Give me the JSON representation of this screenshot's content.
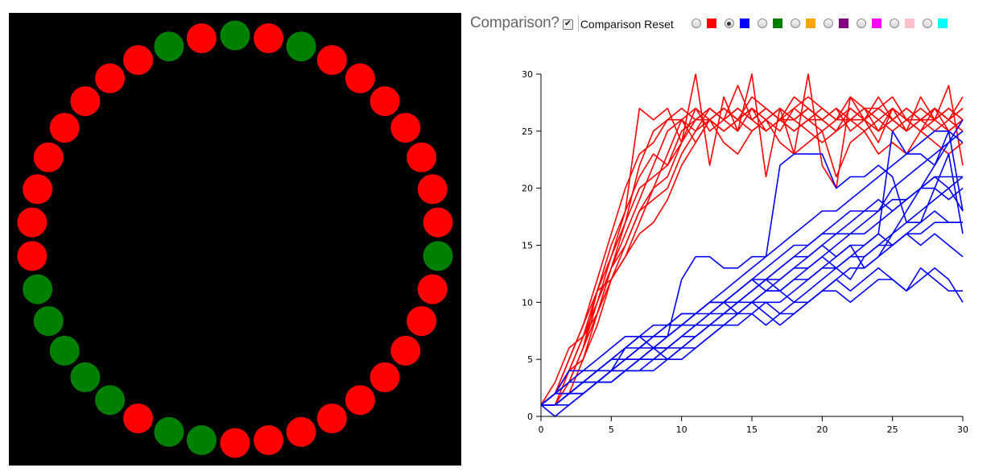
{
  "ring": {
    "background": "#000000",
    "agents": [
      "green",
      "red",
      "green",
      "red",
      "red",
      "red",
      "red",
      "red",
      "red",
      "red",
      "green",
      "red",
      "red",
      "red",
      "red",
      "red",
      "red",
      "red",
      "red",
      "red",
      "green",
      "green",
      "red",
      "green",
      "green",
      "green",
      "green",
      "green",
      "red",
      "red",
      "red",
      "red",
      "red",
      "red",
      "red",
      "red",
      "green",
      "red"
    ],
    "colors": {
      "red": "#ff0000",
      "green": "#008000"
    }
  },
  "controls": {
    "comparison_label": "Comparison?",
    "comparison_checked": true,
    "check_glyph": "✔",
    "reset_label": "Comparison Reset",
    "options": [
      {
        "name": "red",
        "color": "#ff0000",
        "selected": false
      },
      {
        "name": "blue",
        "color": "#0000ff",
        "selected": true
      },
      {
        "name": "green",
        "color": "#008000",
        "selected": false
      },
      {
        "name": "orange",
        "color": "#ffa500",
        "selected": false
      },
      {
        "name": "purple",
        "color": "#800080",
        "selected": false
      },
      {
        "name": "magenta",
        "color": "#ff00ff",
        "selected": false
      },
      {
        "name": "pink",
        "color": "#ffc0cb",
        "selected": false
      },
      {
        "name": "cyan",
        "color": "#00ffff",
        "selected": false
      }
    ]
  },
  "chart_data": {
    "type": "line",
    "title": "",
    "xlabel": "",
    "ylabel": "",
    "xlim": [
      0,
      30
    ],
    "ylim": [
      0,
      30
    ],
    "xticks": [
      0,
      5,
      10,
      15,
      20,
      25,
      30
    ],
    "yticks": [
      0,
      5,
      10,
      15,
      20,
      25,
      30
    ],
    "grid": false,
    "x": [
      0,
      1,
      2,
      3,
      4,
      5,
      6,
      7,
      8,
      9,
      10,
      11,
      12,
      13,
      14,
      15,
      16,
      17,
      18,
      19,
      20,
      21,
      22,
      23,
      24,
      25,
      26,
      27,
      28,
      29,
      30
    ],
    "series": [
      {
        "color": "#ff0000",
        "values": [
          1,
          3,
          6,
          7,
          11,
          15,
          18,
          21,
          23,
          22,
          25,
          26,
          27,
          26,
          27,
          26,
          27,
          26,
          26,
          27,
          26,
          25,
          26,
          27,
          26,
          27,
          26,
          26,
          27,
          26,
          27
        ]
      },
      {
        "color": "#ff0000",
        "values": [
          1,
          2,
          5,
          8,
          12,
          16,
          20,
          23,
          24,
          26,
          27,
          26,
          26,
          27,
          26,
          28,
          27,
          26,
          27,
          28,
          27,
          26,
          28,
          27,
          27,
          26,
          27,
          26,
          26,
          27,
          26
        ]
      },
      {
        "color": "#ff0000",
        "values": [
          1,
          2,
          4,
          7,
          9,
          12,
          14,
          17,
          20,
          23,
          26,
          25,
          27,
          26,
          25,
          27,
          26,
          25,
          27,
          26,
          25,
          26,
          26,
          27,
          25,
          26,
          25,
          26,
          25,
          26,
          25
        ]
      },
      {
        "color": "#ff0000",
        "values": [
          1,
          1,
          3,
          6,
          10,
          14,
          17,
          20,
          21,
          22,
          24,
          27,
          25,
          26,
          27,
          26,
          25,
          26,
          25,
          26,
          27,
          26,
          27,
          26,
          27,
          28,
          26,
          25,
          27,
          26,
          28
        ]
      },
      {
        "color": "#ff0000",
        "values": [
          1,
          2,
          4,
          5,
          8,
          12,
          15,
          18,
          19,
          20,
          23,
          25,
          26,
          25,
          26,
          25,
          26,
          27,
          26,
          25,
          24,
          25,
          26,
          25,
          26,
          25,
          26,
          27,
          26,
          25,
          26
        ]
      },
      {
        "color": "#ff0000",
        "values": [
          1,
          1,
          2,
          5,
          9,
          13,
          17,
          22,
          25,
          26,
          26,
          24,
          26,
          27,
          26,
          27,
          25,
          26,
          28,
          27,
          26,
          27,
          25,
          26,
          27,
          26,
          25,
          26,
          27,
          25,
          26
        ]
      },
      {
        "color": "#ff0000",
        "values": [
          1,
          2,
          3,
          6,
          11,
          14,
          18,
          27,
          26,
          27,
          24,
          26,
          27,
          26,
          29,
          26,
          27,
          26,
          25,
          26,
          26,
          27,
          26,
          26,
          28,
          26,
          27,
          26,
          27,
          26,
          27
        ]
      },
      {
        "color": "#ff0000",
        "values": [
          1,
          1,
          4,
          7,
          10,
          13,
          16,
          19,
          22,
          25,
          26,
          27,
          26,
          25,
          26,
          27,
          26,
          27,
          26,
          27,
          26,
          25,
          27,
          26,
          25,
          27,
          26,
          25,
          26,
          27,
          26
        ]
      },
      {
        "color": "#ff0000",
        "values": [
          1,
          2,
          5,
          8,
          11,
          12,
          14,
          16,
          17,
          19,
          22,
          24,
          26,
          24,
          23,
          25,
          26,
          24,
          23,
          24,
          25,
          21,
          24,
          25,
          23,
          24,
          23,
          25,
          24,
          23,
          24
        ]
      },
      {
        "color": "#ff0000",
        "values": [
          1,
          2,
          3,
          6,
          9,
          13,
          15,
          18,
          20,
          21,
          24,
          30,
          22,
          28,
          25,
          30,
          21,
          27,
          23,
          30,
          22,
          20,
          28,
          26,
          24,
          27,
          25,
          28,
          26,
          29,
          22
        ]
      },
      {
        "color": "#0000ff",
        "values": [
          1,
          1,
          2,
          2,
          3,
          4,
          4,
          5,
          5,
          6,
          6,
          7,
          8,
          9,
          10,
          11,
          12,
          11,
          10,
          11,
          12,
          13,
          12,
          14,
          15,
          16,
          18,
          20,
          22,
          24,
          25
        ]
      },
      {
        "color": "#0000ff",
        "values": [
          1,
          2,
          3,
          3,
          4,
          5,
          6,
          7,
          7,
          8,
          8,
          9,
          10,
          10,
          11,
          12,
          11,
          12,
          13,
          14,
          15,
          16,
          16,
          17,
          18,
          20,
          21,
          22,
          23,
          24,
          26
        ]
      },
      {
        "color": "#0000ff",
        "values": [
          1,
          1,
          2,
          3,
          4,
          4,
          5,
          6,
          7,
          8,
          9,
          9,
          10,
          11,
          12,
          13,
          14,
          15,
          16,
          17,
          18,
          18,
          19,
          20,
          21,
          22,
          23,
          24,
          25,
          25,
          24
        ]
      },
      {
        "color": "#0000ff",
        "values": [
          1,
          2,
          2,
          3,
          3,
          4,
          5,
          5,
          6,
          6,
          7,
          8,
          9,
          9,
          10,
          11,
          12,
          12,
          13,
          13,
          14,
          15,
          16,
          16,
          17,
          18,
          19,
          20,
          21,
          21,
          21
        ]
      },
      {
        "color": "#0000ff",
        "values": [
          1,
          1,
          1,
          2,
          3,
          4,
          4,
          5,
          6,
          7,
          8,
          9,
          9,
          10,
          10,
          11,
          12,
          13,
          14,
          15,
          16,
          16,
          17,
          18,
          18,
          19,
          19,
          20,
          20,
          19,
          20
        ]
      },
      {
        "color": "#0000ff",
        "values": [
          1,
          2,
          2,
          3,
          4,
          5,
          6,
          6,
          7,
          7,
          8,
          8,
          9,
          10,
          11,
          12,
          13,
          14,
          15,
          15,
          16,
          17,
          18,
          18,
          19,
          18,
          19,
          20,
          21,
          20,
          18
        ]
      },
      {
        "color": "#0000ff",
        "values": [
          1,
          1,
          2,
          2,
          3,
          3,
          4,
          5,
          5,
          6,
          7,
          8,
          8,
          9,
          9,
          10,
          11,
          11,
          12,
          13,
          14,
          13,
          14,
          15,
          16,
          15,
          16,
          17,
          18,
          17,
          17
        ]
      },
      {
        "color": "#0000ff",
        "values": [
          1,
          2,
          3,
          4,
          4,
          5,
          5,
          6,
          7,
          7,
          8,
          9,
          10,
          10,
          11,
          12,
          12,
          13,
          14,
          14,
          15,
          14,
          15,
          13,
          14,
          15,
          16,
          15,
          16,
          15,
          14
        ]
      },
      {
        "color": "#0000ff",
        "values": [
          1,
          0,
          1,
          2,
          3,
          4,
          6,
          7,
          6,
          5,
          5,
          6,
          7,
          8,
          9,
          10,
          9,
          8,
          9,
          10,
          11,
          12,
          11,
          12,
          13,
          12,
          11,
          12,
          13,
          12,
          10
        ]
      },
      {
        "color": "#0000ff",
        "values": [
          1,
          2,
          4,
          4,
          5,
          6,
          7,
          7,
          8,
          8,
          9,
          9,
          10,
          10,
          9,
          10,
          10,
          9,
          10,
          10,
          11,
          11,
          10,
          11,
          12,
          12,
          11,
          13,
          12,
          11,
          11
        ]
      },
      {
        "color": "#0000ff",
        "values": [
          1,
          1,
          2,
          3,
          4,
          5,
          5,
          6,
          6,
          7,
          12,
          14,
          14,
          13,
          13,
          14,
          14,
          22,
          23,
          23,
          23,
          20,
          21,
          21,
          22,
          21,
          17,
          18,
          19,
          20,
          21
        ]
      },
      {
        "color": "#0000ff",
        "values": [
          1,
          2,
          2,
          3,
          3,
          3,
          4,
          4,
          5,
          5,
          6,
          6,
          7,
          8,
          8,
          9,
          10,
          10,
          11,
          12,
          13,
          14,
          15,
          15,
          16,
          25,
          23,
          23,
          22,
          25,
          18
        ]
      },
      {
        "color": "#0000ff",
        "values": [
          1,
          1,
          2,
          2,
          3,
          3,
          4,
          4,
          4,
          5,
          6,
          7,
          8,
          8,
          9,
          9,
          8,
          9,
          9,
          10,
          11,
          12,
          13,
          13,
          14,
          16,
          17,
          17,
          20,
          23,
          16
        ]
      },
      {
        "color": "#0000ff",
        "values": [
          1,
          1,
          2,
          3,
          3,
          4,
          5,
          5,
          6,
          6,
          7,
          7,
          8,
          9,
          10,
          10,
          11,
          11,
          12,
          12,
          13,
          13,
          14,
          14,
          15,
          15,
          16,
          16,
          17,
          17,
          17
        ]
      }
    ]
  }
}
